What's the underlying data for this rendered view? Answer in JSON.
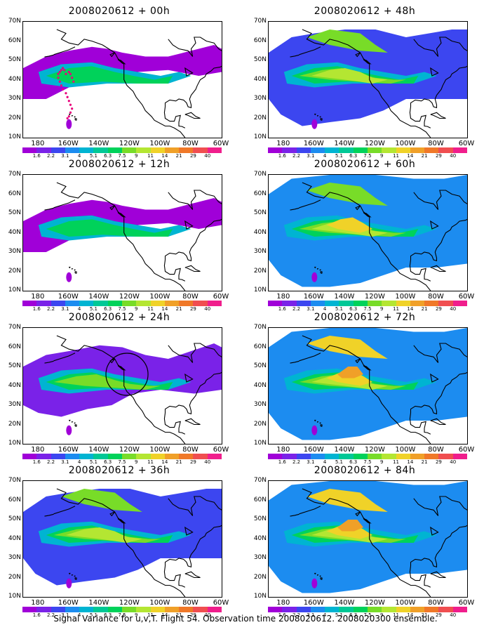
{
  "panels": [
    {
      "title": "2008020612 + 00h",
      "extent": 1,
      "core": 2,
      "alaska": 0,
      "track": true,
      "circle": false
    },
    {
      "title": "2008020612 + 12h",
      "extent": 1,
      "core": 2,
      "alaska": 0,
      "track": false,
      "circle": false
    },
    {
      "title": "2008020612 + 24h",
      "extent": 2,
      "core": 3,
      "alaska": 0,
      "track": false,
      "circle": true
    },
    {
      "title": "2008020612 + 36h",
      "extent": 3,
      "core": 4,
      "alaska": 1,
      "track": false,
      "circle": false
    },
    {
      "title": "2008020612 + 48h",
      "extent": 3,
      "core": 4,
      "alaska": 1,
      "track": false,
      "circle": false
    },
    {
      "title": "2008020612 + 60h",
      "extent": 4,
      "core": 5,
      "alaska": 1,
      "track": false,
      "circle": false
    },
    {
      "title": "2008020612 + 72h",
      "extent": 4,
      "core": 6,
      "alaska": 2,
      "track": false,
      "circle": false
    },
    {
      "title": "2008020612 + 84h",
      "extent": 4,
      "core": 6,
      "alaska": 2,
      "track": false,
      "circle": false
    }
  ],
  "lat_labels": [
    "70N",
    "60N",
    "50N",
    "40N",
    "30N",
    "20N",
    "10N"
  ],
  "lon_labels": [
    "180",
    "160W",
    "140W",
    "120W",
    "100W",
    "80W",
    "60W"
  ],
  "colorbar": {
    "labels": [
      "1.6",
      "2.2",
      "3.1",
      "4",
      "5.1",
      "6.3",
      "7.5",
      "9",
      "11",
      "14",
      "21",
      "29",
      "40"
    ],
    "colors": [
      "#a000d8",
      "#7a22e8",
      "#3c46f0",
      "#1c8cf0",
      "#00b4d2",
      "#00c896",
      "#00d25a",
      "#78dc28",
      "#b4e632",
      "#f0d228",
      "#f0a028",
      "#f07828",
      "#f04e50",
      "#f01e8c"
    ]
  },
  "footer": "Signal Variance for u,v,T. Flight 54. Observation time 2008020612. 2008020300 ensemble."
}
